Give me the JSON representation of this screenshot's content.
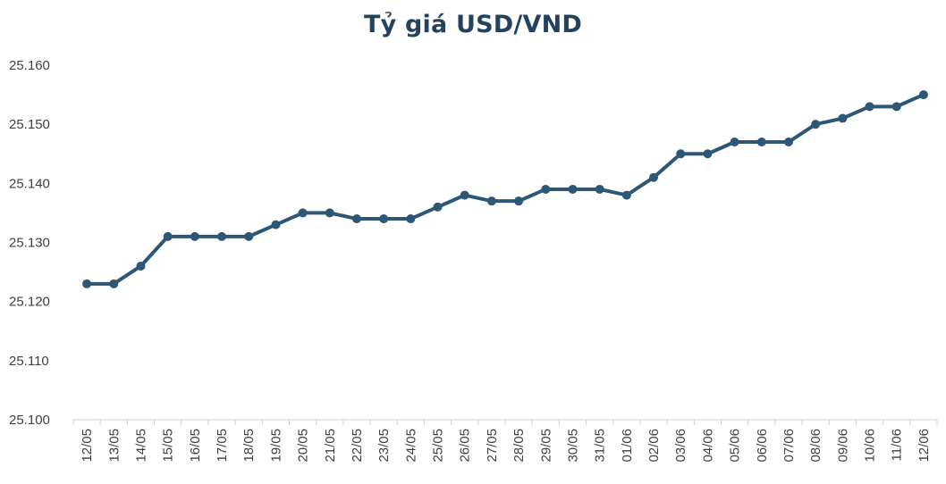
{
  "chart_data": {
    "type": "line",
    "title": "Tỷ giá USD/VND",
    "xlabel": "",
    "ylabel": "",
    "categories": [
      "12/05",
      "13/05",
      "14/05",
      "15/05",
      "16/05",
      "17/05",
      "18/05",
      "19/05",
      "20/05",
      "21/05",
      "22/05",
      "23/05",
      "24/05",
      "25/05",
      "26/05",
      "27/05",
      "28/05",
      "29/05",
      "30/05",
      "31/05",
      "01/06",
      "02/06",
      "03/06",
      "04/06",
      "05/06",
      "06/06",
      "07/06",
      "08/06",
      "09/06",
      "10/06",
      "11/06",
      "12/06"
    ],
    "series": [
      {
        "values": [
          25123,
          25123,
          25126,
          25131,
          25131,
          25131,
          25131,
          25133,
          25135,
          25135,
          25134,
          25134,
          25134,
          25136,
          25138,
          25137,
          25137,
          25139,
          25139,
          25139,
          25138,
          25141,
          25145,
          25145,
          25147,
          25147,
          25147,
          25150,
          25151,
          25153,
          25153,
          25155
        ],
        "color": "#2e5675"
      }
    ],
    "ylim": [
      25100,
      25160
    ],
    "yticks": [
      25100,
      25110,
      25120,
      25130,
      25140,
      25150,
      25160
    ],
    "ytick_labels": [
      "25.100",
      "25.110",
      "25.120",
      "25.130",
      "25.140",
      "25.150",
      "25.160"
    ],
    "grid": false,
    "legend": "none"
  }
}
